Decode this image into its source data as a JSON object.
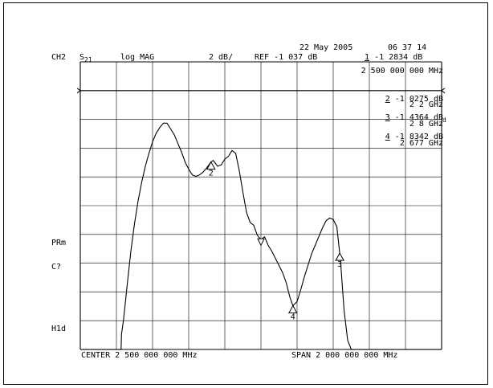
{
  "header": {
    "date": "22 May 2005",
    "time": "06 37 14",
    "channel": "CH2",
    "param_main": "S",
    "param_sub": "21",
    "format": "log MAG",
    "scale": "2 dB/",
    "ref": "REF -1 037 dB",
    "marker1_num": "1",
    "marker1_value": "-1 2834 dB",
    "marker1_freq": "2 500 000 000 MHz"
  },
  "markers": [
    {
      "num": "2",
      "value": "-1 0275 dB",
      "freq": "2 2 GHz"
    },
    {
      "num": "3",
      "value": "-1 4364 dB",
      "freq": "2 8 GHz"
    },
    {
      "num": "4",
      "value": "-1 8342 dB",
      "freq": "2 677 GHz"
    }
  ],
  "side_labels": {
    "prm": "PRm",
    "cq": "C?",
    "hld": "H1d",
    "delta": "d"
  },
  "footer": {
    "center": "CENTER 2 500 000 000 MHz",
    "span": "SPAN 2 000 000 000 MHz"
  },
  "chart_data": {
    "type": "line",
    "title": "",
    "xlabel": "",
    "ylabel": "",
    "xlim": [
      1.5,
      3.5
    ],
    "ylim": [
      -19.037,
      0.963
    ],
    "ref_level": -1.037,
    "grid": true,
    "marker_labels": [
      "2",
      "3",
      "4"
    ],
    "series": [
      {
        "x": [
          1.5,
          1.68,
          1.726,
          1.728,
          1.74,
          1.76,
          1.78,
          1.8,
          1.82,
          1.84,
          1.86,
          1.88,
          1.9,
          1.92,
          1.94,
          1.96,
          1.98,
          2.0,
          2.02,
          2.04,
          2.06,
          2.08,
          2.1,
          2.12,
          2.14,
          2.16,
          2.18,
          2.2,
          2.2236,
          2.236,
          2.26,
          2.28,
          2.3,
          2.32,
          2.34,
          2.36,
          2.38,
          2.4,
          2.42,
          2.44,
          2.46,
          2.48,
          2.5,
          2.52,
          2.54,
          2.56,
          2.58,
          2.6,
          2.62,
          2.64,
          2.66,
          2.677,
          2.7,
          2.72,
          2.74,
          2.76,
          2.78,
          2.8,
          2.82,
          2.84,
          2.86,
          2.88,
          2.9,
          2.92,
          2.94,
          2.96,
          2.98,
          3.0,
          3.02,
          3.04,
          3.1,
          3.3,
          3.5
        ],
        "y": [
          -19.04,
          -19.04,
          -19.04,
          -18.0,
          -16.9,
          -14.5,
          -12.2,
          -10.3,
          -8.7,
          -7.4,
          -6.3,
          -5.4,
          -4.6,
          -4.0,
          -3.6,
          -3.3,
          -3.3,
          -3.7,
          -4.1,
          -4.7,
          -5.3,
          -6.0,
          -6.5,
          -6.9,
          -7.0,
          -6.9,
          -6.7,
          -6.4,
          -6.0,
          -5.9,
          -6.3,
          -6.2,
          -5.8,
          -5.6,
          -5.2,
          -5.4,
          -6.6,
          -8.1,
          -9.5,
          -10.2,
          -10.4,
          -11.1,
          -11.4,
          -11.2,
          -11.8,
          -12.2,
          -12.7,
          -13.2,
          -13.7,
          -14.4,
          -15.4,
          -16.0,
          -15.7,
          -14.9,
          -14.0,
          -13.2,
          -12.4,
          -11.8,
          -11.2,
          -10.6,
          -10.1,
          -9.9,
          -10.0,
          -10.5,
          -12.8,
          -16.3,
          -18.4,
          -19.04,
          -19.04,
          -19.04,
          -19.04,
          -19.04,
          -19.04
        ]
      }
    ]
  }
}
